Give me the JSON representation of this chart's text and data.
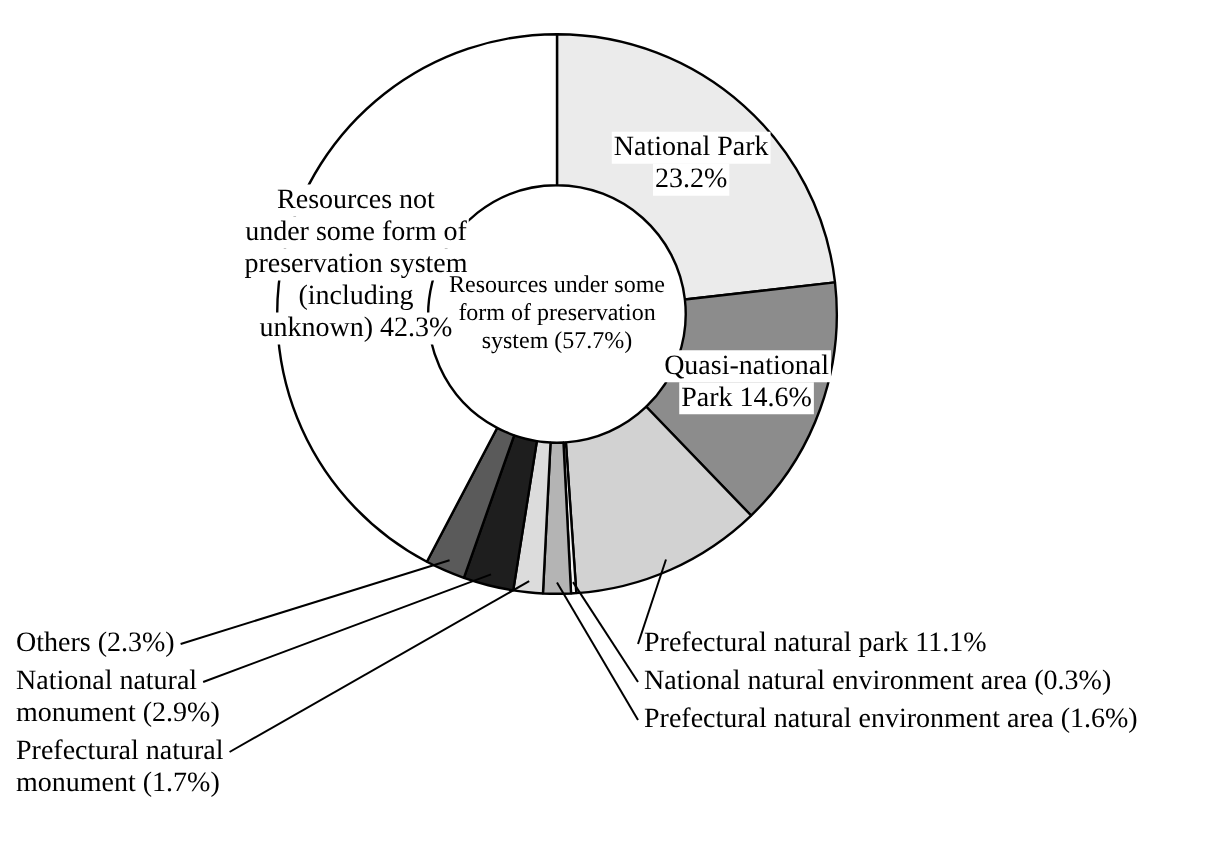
{
  "chart_data": {
    "type": "donut",
    "categories": [
      "National Park",
      "Quasi-national Park",
      "Prefectural natural park",
      "National natural environment area",
      "Prefectural natural environment area",
      "Prefectural natural monument",
      "National natural monument",
      "Others",
      "Resources not under some form of preservation system (including unknown)"
    ],
    "values": [
      23.2,
      14.6,
      11.1,
      0.3,
      1.6,
      1.7,
      2.9,
      2.3,
      42.3
    ],
    "value_labels": [
      "23.2%",
      "14.6%",
      "11.1%",
      "(0.3%)",
      "(1.6%)",
      "(1.7%)",
      "(2.9%)",
      "(2.3%)",
      "42.3%"
    ],
    "colors": [
      "#ebebeb",
      "#8c8c8c",
      "#d2d2d2",
      "#f4f4f4",
      "#b4b4b4",
      "#dcdcdc",
      "#1e1e1e",
      "#5a5a5a",
      "#ffffff"
    ],
    "annotations": [
      "Resources under some form of preservation system (57.7%)"
    ],
    "legend": false
  }
}
